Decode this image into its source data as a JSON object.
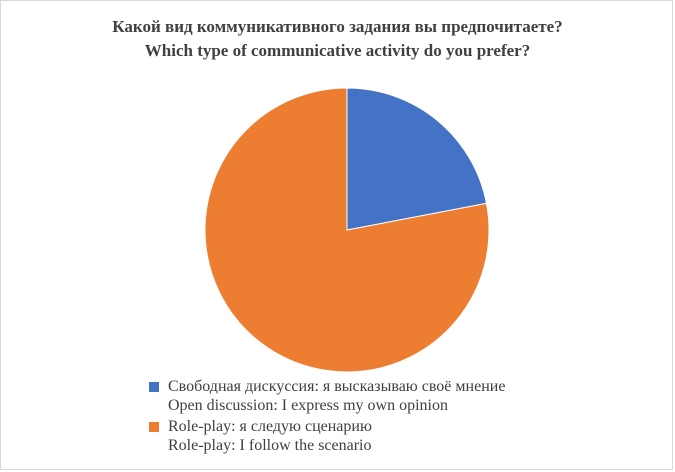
{
  "chart_data": {
    "type": "pie",
    "title": "Какой вид коммуникативного задания вы предпочитаете?",
    "subtitle": "Which type of communicative activity do you prefer?",
    "categories": [
      "Свободная дискуссия: я высказываю своё мнение\nOpen discussion: I express my own opinion",
      "Role-play: я следую сценарию\nRole-play: I follow the scenario"
    ],
    "values": [
      22,
      78
    ],
    "colors": [
      "#4472c4",
      "#ed7d31"
    ],
    "legend_position": "bottom",
    "start_angle": "12 o'clock",
    "direction": "clockwise"
  }
}
